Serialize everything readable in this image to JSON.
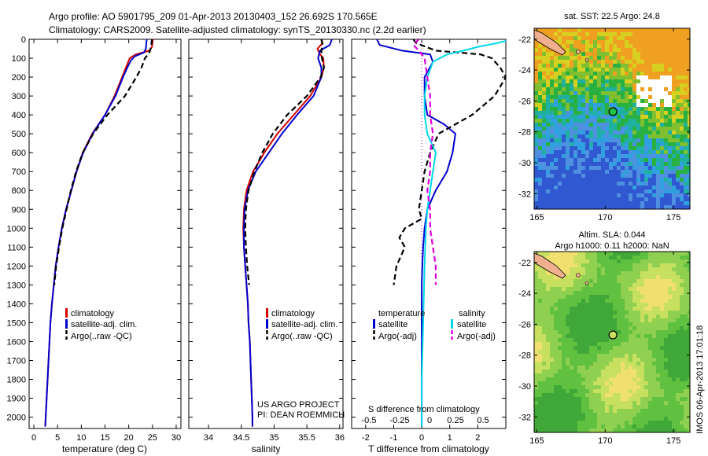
{
  "header": {
    "line1": "Argo profile: AO 5901795_209 01-Apr-2013 20130403_152 26.692S 170.565E",
    "line2": "Climatology: CARS2009. Satellite-adjusted climatology: synTS_20130330.nc (2.2d earlier)"
  },
  "colors": {
    "climatology": "#d40000",
    "satellite": "#0000d0",
    "argo": "#000000",
    "sat_salinity": "#00d8e8",
    "argo_salinity": "#e000e0"
  },
  "legend_ts": {
    "climatology": "climatology",
    "satellite": "satellite-adj. clim.",
    "argo": "Argo(..raw -QC)"
  },
  "legend_diff": {
    "temp_header": "temperature",
    "sal_header": "salinity",
    "temp_sat": "satellite",
    "temp_argo": "Argo(-adj)",
    "sal_sat": "satellite",
    "sal_argo": "Argo(-adj)"
  },
  "credits": {
    "line1": "US ARGO PROJECT",
    "line2": "PI: DEAN ROEMMICH"
  },
  "diff_labels": {
    "s_axis_title": "S difference from climatology",
    "s_ticks": [
      "-0.5",
      "-0.25",
      "0",
      "0.25",
      "0.5"
    ]
  },
  "map_top": {
    "title": "sat. SST: 22.5 Argo: 24.8"
  },
  "map_bottom": {
    "title1": "Altim. SLA: 0.044",
    "title2": "Argo h1000: 0.11 h2000: NaN"
  },
  "side_stamp": "IMOS 06-Apr-2013 17:01:18",
  "chart_data": [
    {
      "type": "line",
      "id": "temperature",
      "xlabel": "temperature (deg C)",
      "xlim": [
        -1,
        31
      ],
      "ylim": [
        2060,
        0
      ],
      "xticks": [
        0,
        5,
        10,
        15,
        20,
        25,
        30
      ],
      "yticks": [
        0,
        100,
        200,
        300,
        400,
        500,
        600,
        700,
        800,
        900,
        1000,
        1100,
        1200,
        1300,
        1400,
        1500,
        1600,
        1700,
        1800,
        1900,
        2000
      ],
      "series": [
        {
          "name": "climatology",
          "color": "#d40000",
          "style": "solid",
          "points": [
            [
              25.1,
              0
            ],
            [
              25.0,
              20
            ],
            [
              24.9,
              40
            ],
            [
              24.3,
              60
            ],
            [
              21.5,
              80
            ],
            [
              20.2,
              100
            ],
            [
              19.4,
              150
            ],
            [
              18.6,
              200
            ],
            [
              17.0,
              300
            ],
            [
              15.0,
              400
            ],
            [
              12.3,
              500
            ],
            [
              10.3,
              600
            ],
            [
              9.0,
              700
            ],
            [
              7.9,
              800
            ],
            [
              6.8,
              900
            ],
            [
              5.9,
              1000
            ],
            [
              5.2,
              1100
            ],
            [
              4.6,
              1200
            ],
            [
              4.2,
              1300
            ],
            [
              3.8,
              1400
            ],
            [
              3.5,
              1500
            ],
            [
              3.3,
              1600
            ],
            [
              3.1,
              1700
            ],
            [
              2.9,
              1800
            ],
            [
              2.7,
              1900
            ],
            [
              2.5,
              2000
            ],
            [
              2.4,
              2050
            ]
          ]
        },
        {
          "name": "satellite-adj. clim.",
          "color": "#0000d0",
          "style": "solid",
          "points": [
            [
              23.8,
              0
            ],
            [
              23.7,
              20
            ],
            [
              23.6,
              50
            ],
            [
              23.2,
              70
            ],
            [
              21.3,
              90
            ],
            [
              20.5,
              110
            ],
            [
              19.7,
              150
            ],
            [
              18.8,
              200
            ],
            [
              17.2,
              300
            ],
            [
              15.0,
              400
            ],
            [
              12.4,
              500
            ],
            [
              10.4,
              600
            ],
            [
              9.0,
              700
            ],
            [
              7.9,
              800
            ],
            [
              6.8,
              900
            ],
            [
              5.9,
              1000
            ],
            [
              5.2,
              1100
            ],
            [
              4.6,
              1200
            ],
            [
              4.2,
              1300
            ],
            [
              3.8,
              1400
            ],
            [
              3.5,
              1500
            ],
            [
              3.3,
              1600
            ],
            [
              3.1,
              1700
            ],
            [
              2.9,
              1800
            ],
            [
              2.7,
              1900
            ],
            [
              2.5,
              2000
            ],
            [
              2.4,
              2050
            ]
          ]
        },
        {
          "name": "Argo(..raw -QC)",
          "color": "#000000",
          "style": "dashed",
          "points": [
            [
              24.9,
              0
            ],
            [
              24.8,
              20
            ],
            [
              24.7,
              40
            ],
            [
              24.5,
              60
            ],
            [
              24.1,
              80
            ],
            [
              23.4,
              100
            ],
            [
              22.7,
              150
            ],
            [
              21.6,
              200
            ],
            [
              19.2,
              300
            ],
            [
              15.5,
              400
            ],
            [
              12.5,
              500
            ],
            [
              10.3,
              600
            ],
            [
              8.9,
              700
            ],
            [
              7.8,
              800
            ],
            [
              6.9,
              900
            ],
            [
              6.0,
              1000
            ],
            [
              5.3,
              1100
            ],
            [
              4.7,
              1200
            ],
            [
              4.3,
              1300
            ]
          ]
        }
      ]
    },
    {
      "type": "line",
      "id": "salinity",
      "xlabel": "salinity",
      "xlim": [
        33.7,
        36.05
      ],
      "ylim": [
        2060,
        0
      ],
      "xticks": [
        34,
        34.5,
        35,
        35.5,
        36
      ],
      "series": [
        {
          "name": "climatology",
          "color": "#d40000",
          "style": "solid",
          "points": [
            [
              35.72,
              0
            ],
            [
              35.74,
              20
            ],
            [
              35.66,
              50
            ],
            [
              35.7,
              80
            ],
            [
              35.75,
              100
            ],
            [
              35.76,
              150
            ],
            [
              35.72,
              200
            ],
            [
              35.55,
              300
            ],
            [
              35.3,
              400
            ],
            [
              35.05,
              500
            ],
            [
              34.85,
              600
            ],
            [
              34.68,
              700
            ],
            [
              34.58,
              800
            ],
            [
              34.54,
              900
            ],
            [
              34.53,
              1000
            ],
            [
              34.54,
              1100
            ],
            [
              34.56,
              1200
            ],
            [
              34.58,
              1300
            ],
            [
              34.6,
              1400
            ],
            [
              34.61,
              1500
            ],
            [
              34.63,
              1600
            ],
            [
              34.64,
              1700
            ],
            [
              34.65,
              1800
            ],
            [
              34.66,
              1900
            ],
            [
              34.67,
              2000
            ],
            [
              34.67,
              2050
            ]
          ]
        },
        {
          "name": "satellite-adj. clim.",
          "color": "#0000d0",
          "style": "solid",
          "points": [
            [
              35.88,
              0
            ],
            [
              35.85,
              30
            ],
            [
              35.7,
              60
            ],
            [
              35.67,
              100
            ],
            [
              35.72,
              150
            ],
            [
              35.72,
              200
            ],
            [
              35.6,
              300
            ],
            [
              35.35,
              400
            ],
            [
              35.12,
              500
            ],
            [
              34.92,
              600
            ],
            [
              34.72,
              700
            ],
            [
              34.6,
              800
            ],
            [
              34.55,
              900
            ],
            [
              34.54,
              1000
            ],
            [
              34.54,
              1100
            ],
            [
              34.56,
              1200
            ],
            [
              34.58,
              1300
            ],
            [
              34.6,
              1400
            ],
            [
              34.61,
              1500
            ],
            [
              34.63,
              1600
            ],
            [
              34.64,
              1700
            ],
            [
              34.65,
              1800
            ],
            [
              34.66,
              1900
            ],
            [
              34.67,
              2000
            ],
            [
              34.67,
              2050
            ]
          ]
        },
        {
          "name": "Argo(..raw -QC)",
          "color": "#000000",
          "style": "dashed",
          "points": [
            [
              35.72,
              0
            ],
            [
              35.74,
              30
            ],
            [
              35.72,
              60
            ],
            [
              35.73,
              100
            ],
            [
              35.76,
              150
            ],
            [
              35.71,
              200
            ],
            [
              35.5,
              300
            ],
            [
              35.2,
              400
            ],
            [
              34.98,
              500
            ],
            [
              34.82,
              600
            ],
            [
              34.7,
              700
            ],
            [
              34.61,
              800
            ],
            [
              34.57,
              900
            ],
            [
              34.56,
              1000
            ],
            [
              34.57,
              1100
            ],
            [
              34.59,
              1200
            ],
            [
              34.62,
              1300
            ]
          ]
        }
      ]
    },
    {
      "type": "line",
      "id": "difference",
      "xlabel": "T difference from climatology",
      "xlim": [
        -2.5,
        3.0
      ],
      "ylim": [
        2060,
        0
      ],
      "xticks": [
        -2,
        -1,
        0,
        1,
        2
      ],
      "series": [
        {
          "name": "satellite",
          "color": "#0000d0",
          "style": "solid",
          "points": [
            [
              -1.6,
              0
            ],
            [
              -1.5,
              30
            ],
            [
              -0.7,
              60
            ],
            [
              0.3,
              80
            ],
            [
              0.4,
              120
            ],
            [
              0.1,
              200
            ],
            [
              0.1,
              300
            ],
            [
              0.2,
              400
            ],
            [
              0.8,
              450
            ],
            [
              1.2,
              500
            ],
            [
              1.1,
              600
            ],
            [
              0.9,
              700
            ],
            [
              0.5,
              800
            ],
            [
              0.2,
              900
            ],
            [
              0.1,
              1000
            ],
            [
              0.05,
              1100
            ],
            [
              0.02,
              1200
            ],
            [
              0.0,
              1300
            ],
            [
              0.0,
              1500
            ],
            [
              0.0,
              1800
            ],
            [
              0.0,
              2050
            ]
          ]
        },
        {
          "name": "Argo(-adj)",
          "color": "#000000",
          "style": "dashed",
          "points": [
            [
              -0.3,
              0
            ],
            [
              -0.2,
              20
            ],
            [
              0.5,
              60
            ],
            [
              2.1,
              80
            ],
            [
              2.5,
              100
            ],
            [
              2.8,
              150
            ],
            [
              3.0,
              200
            ],
            [
              2.6,
              300
            ],
            [
              1.8,
              400
            ],
            [
              0.6,
              500
            ],
            [
              0.3,
              600
            ],
            [
              0.1,
              700
            ],
            [
              0.0,
              800
            ],
            [
              -0.1,
              900
            ],
            [
              0.0,
              950
            ],
            [
              -0.6,
              1000
            ],
            [
              -0.8,
              1050
            ],
            [
              -0.6,
              1100
            ],
            [
              -0.9,
              1200
            ],
            [
              -1.0,
              1300
            ]
          ]
        },
        {
          "name": "satellite",
          "color": "#00d8e8",
          "style": "solid",
          "points": [
            [
              3.2,
              0
            ],
            [
              2.7,
              20
            ],
            [
              2.0,
              40
            ],
            [
              1.5,
              60
            ],
            [
              0.9,
              80
            ],
            [
              0.4,
              120
            ],
            [
              0.2,
              200
            ],
            [
              0.1,
              300
            ],
            [
              0.1,
              400
            ],
            [
              0.2,
              500
            ],
            [
              0.5,
              600
            ],
            [
              0.4,
              700
            ],
            [
              0.3,
              800
            ],
            [
              0.2,
              900
            ],
            [
              0.15,
              1000
            ],
            [
              0.1,
              1200
            ],
            [
              0.05,
              1500
            ],
            [
              0.0,
              1800
            ],
            [
              0.0,
              2050
            ]
          ]
        },
        {
          "name": "Argo(-adj)",
          "color": "#e000e0",
          "style": "dashed",
          "points": [
            [
              -0.1,
              0
            ],
            [
              -0.3,
              30
            ],
            [
              -0.1,
              60
            ],
            [
              0.1,
              100
            ],
            [
              0.2,
              200
            ],
            [
              0.3,
              300
            ],
            [
              0.3,
              400
            ],
            [
              0.4,
              500
            ],
            [
              0.3,
              600
            ],
            [
              0.3,
              700
            ],
            [
              0.2,
              800
            ],
            [
              0.3,
              900
            ],
            [
              0.3,
              1000
            ],
            [
              0.4,
              1100
            ],
            [
              0.5,
              1200
            ],
            [
              0.5,
              1300
            ]
          ]
        }
      ]
    },
    {
      "type": "heatmap",
      "id": "sst-map",
      "title": "sat. SST: 22.5 Argo: 24.8",
      "xticks": [
        165,
        170,
        175
      ],
      "yticks": [
        -22,
        -24,
        -26,
        -28,
        -30,
        -32
      ],
      "xlim": [
        164.8,
        176.2
      ],
      "ylim": [
        -33.0,
        -21.3
      ],
      "argo_position": [
        170.565,
        -26.692
      ]
    },
    {
      "type": "heatmap",
      "id": "sla-map",
      "title": "Altim. SLA: 0.044",
      "xticks": [
        165,
        170,
        175
      ],
      "yticks": [
        -22,
        -24,
        -26,
        -28,
        -30,
        -32
      ],
      "xlim": [
        164.8,
        176.2
      ],
      "ylim": [
        -33.0,
        -21.3
      ],
      "argo_position": [
        170.565,
        -26.692
      ]
    }
  ]
}
